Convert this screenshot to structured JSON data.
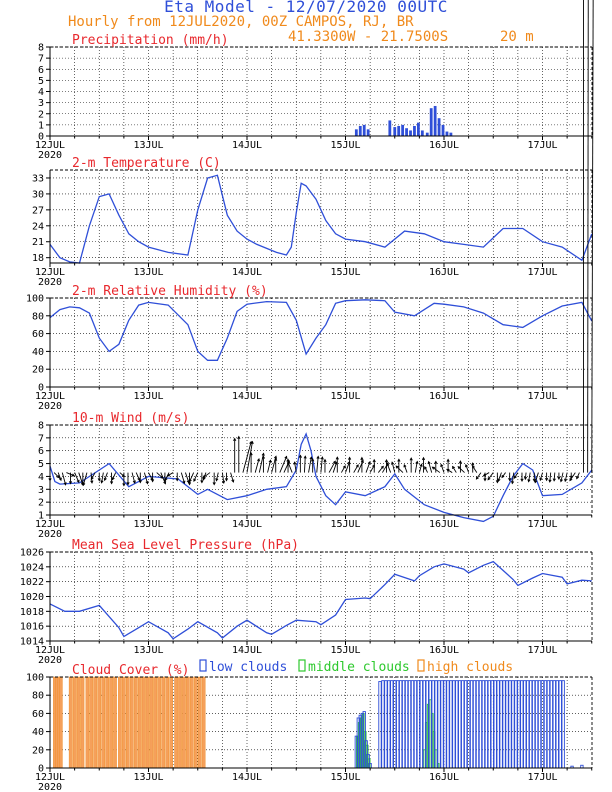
{
  "header": {
    "title": "Eta Model - 12/07/2020 00UTC",
    "subtitle": "Hourly from 12JUL2020, 00Z  CAMPOS, RJ, BR",
    "coords": "41.3300W - 21.7500S",
    "elevation": "20  m"
  },
  "colors": {
    "series": "#2f4fd8",
    "title": "#e8282d",
    "high": "#f5a05b",
    "highEdge": "#f08a1c",
    "middle": "#2ec92e",
    "low": "#2f4fd8",
    "axis": "#000000"
  },
  "x_axis": {
    "ticks": [
      "12JUL",
      "13JUL",
      "14JUL",
      "15JUL",
      "16JUL",
      "17JUL"
    ],
    "year": "2020",
    "range_days": [
      0,
      5.5
    ]
  },
  "chart_data": [
    {
      "id": "precip",
      "type": "bar",
      "title": "Precipitation (mm/h)",
      "ylim": [
        0,
        8
      ],
      "yticks": [
        0,
        1,
        2,
        3,
        4,
        5,
        6,
        7,
        8
      ],
      "show_year": true,
      "x": [
        3.11,
        3.15,
        3.19,
        3.23,
        3.45,
        3.5,
        3.54,
        3.58,
        3.62,
        3.66,
        3.7,
        3.74,
        3.78,
        3.83,
        3.87,
        3.91,
        3.95,
        3.99,
        4.03,
        4.07
      ],
      "values": [
        0.6,
        0.9,
        1.0,
        0.6,
        1.4,
        0.8,
        0.9,
        1.0,
        0.7,
        0.5,
        0.9,
        1.2,
        0.5,
        0.3,
        2.5,
        2.7,
        1.6,
        1.0,
        0.4,
        0.3
      ]
    },
    {
      "id": "temp",
      "type": "line",
      "title": "2-m Temperature (C)",
      "ylim": [
        17,
        34.5
      ],
      "yticks": [
        18,
        21,
        24,
        27,
        30,
        33
      ],
      "show_year": true,
      "x": [
        0.0,
        0.1,
        0.2,
        0.3,
        0.4,
        0.5,
        0.6,
        0.7,
        0.8,
        0.9,
        1.0,
        1.2,
        1.4,
        1.5,
        1.6,
        1.7,
        1.8,
        1.9,
        2.0,
        2.1,
        2.3,
        2.4,
        2.45,
        2.5,
        2.55,
        2.6,
        2.7,
        2.8,
        2.9,
        3.0,
        3.2,
        3.4,
        3.6,
        3.8,
        4.0,
        4.2,
        4.4,
        4.6,
        4.8,
        5.0,
        5.2,
        5.4,
        5.5
      ],
      "values": [
        20.5,
        18.0,
        17.2,
        17.0,
        24.0,
        29.5,
        30.0,
        26.0,
        22.5,
        21.0,
        20.0,
        19.0,
        18.5,
        27.0,
        33.0,
        33.5,
        26.0,
        23.0,
        21.5,
        20.5,
        19.0,
        18.5,
        20.0,
        26.5,
        32.0,
        31.5,
        29.0,
        25.0,
        22.5,
        21.5,
        21.0,
        20.0,
        23.0,
        22.5,
        21.0,
        20.5,
        20.0,
        23.5,
        23.5,
        21.0,
        20.0,
        17.5,
        22.5
      ]
    },
    {
      "id": "rh",
      "type": "line",
      "title": "2-m Relative Humidity (%)",
      "ylim": [
        0,
        100
      ],
      "yticks": [
        0,
        20,
        40,
        60,
        80,
        100
      ],
      "show_year": true,
      "x": [
        0.0,
        0.1,
        0.2,
        0.3,
        0.4,
        0.5,
        0.6,
        0.7,
        0.8,
        0.9,
        1.0,
        1.2,
        1.4,
        1.5,
        1.6,
        1.7,
        1.8,
        1.9,
        2.0,
        2.2,
        2.4,
        2.5,
        2.6,
        2.7,
        2.8,
        2.9,
        3.0,
        3.2,
        3.4,
        3.5,
        3.7,
        3.9,
        4.0,
        4.2,
        4.4,
        4.6,
        4.8,
        5.0,
        5.2,
        5.4,
        5.5
      ],
      "values": [
        78.0,
        87.0,
        90.0,
        89.0,
        83.0,
        55.0,
        40.0,
        48.0,
        75.0,
        92.0,
        95.0,
        92.0,
        70.0,
        40.0,
        30.0,
        30.0,
        55.0,
        85.0,
        93.0,
        96.0,
        95.0,
        75.0,
        37.0,
        55.0,
        70.0,
        94.0,
        97.0,
        98.0,
        97.0,
        84.0,
        80.0,
        94.0,
        93.0,
        90.0,
        83.0,
        70.0,
        67.0,
        80.0,
        91.0,
        95.0,
        74.0
      ]
    },
    {
      "id": "wind",
      "type": "line",
      "title": "10-m Wind (m/s)",
      "ylim": [
        1,
        8
      ],
      "yticks": [
        1,
        2,
        3,
        4,
        5,
        6,
        7,
        8
      ],
      "show_year": true,
      "arrow_baseline": 4.3,
      "x": [
        0.0,
        0.05,
        0.1,
        0.3,
        0.5,
        0.6,
        0.8,
        1.0,
        1.3,
        1.5,
        1.6,
        1.8,
        2.0,
        2.2,
        2.4,
        2.5,
        2.55,
        2.6,
        2.65,
        2.7,
        2.8,
        2.9,
        3.0,
        3.2,
        3.4,
        3.5,
        3.6,
        3.8,
        4.0,
        4.2,
        4.4,
        4.5,
        4.6,
        4.7,
        4.8,
        4.9,
        5.0,
        5.2,
        5.4,
        5.5
      ],
      "values": [
        4.8,
        3.6,
        3.4,
        3.5,
        4.5,
        5.0,
        3.2,
        4.0,
        3.8,
        2.6,
        3.0,
        2.2,
        2.5,
        3.0,
        3.2,
        4.5,
        6.5,
        7.3,
        6.0,
        4.0,
        2.5,
        1.8,
        2.8,
        2.5,
        3.2,
        4.2,
        3.0,
        1.8,
        1.2,
        0.8,
        0.5,
        0.9,
        2.5,
        4.0,
        5.0,
        4.5,
        2.5,
        2.6,
        3.5,
        4.5
      ],
      "arrows_u": [
        -0.0,
        0.5,
        0.28,
        0.33,
        0.78,
        0.0,
        0.42,
        0.43,
        -0.0,
        -0.37,
        0.1,
        -0.38,
        -0.0,
        -0.18,
        -0.29,
        -0.0,
        -0.33,
        0.46,
        0.0,
        0.0,
        0.27,
        0.34,
        0.0,
        0.32,
        0.41,
        -0.0,
        0.62,
        0.46,
        -0.0,
        -0.38,
        -0.56,
        -0.0,
        0.31,
        0.34,
        -0.0,
        -0.41,
        -0.38,
        0.0,
        -0.26,
        -0.68,
        -0.0,
        -0.19,
        0.14,
        -0.0,
        0.28,
        0.0,
        0.0,
        0.83,
        0.55,
        0.0,
        0.38,
        0.43,
        0.0,
        0.31,
        0.44,
        0.0,
        0.68,
        0.54,
        -0.0,
        -0.42,
        -0.17,
        0.0,
        0.08,
        0.28,
        0.0,
        0.14,
        0.15,
        0.0,
        0.62,
        0.35,
        0.0,
        0.38,
        0.4,
        0.0,
        0.45,
        0.53,
        0.0,
        0.4,
        0.43,
        0.0,
        0.5,
        0.58,
        -0.0,
        -0.34,
        -0.26,
        -0.0,
        -0.68,
        -0.28,
        0.0,
        0.2,
        0.23,
        -0.0,
        -0.29,
        -0.31,
        -0.0,
        -0.75,
        -0.29,
        -0.0,
        -0.53,
        -0.37,
        -0.0,
        -0.63,
        -0.28,
        -0.0,
        -0.43,
        -0.45,
        -0.0,
        -0.56,
        -0.52,
        -0.0,
        -0.32,
        -0.36,
        -0.0,
        -0.15,
        -0.35,
        -0.0,
        -0.08,
        -0.16,
        -0.0,
        -0.32,
        -0.22,
        -0.0,
        -0.09,
        -0.07,
        -0.0,
        -0.21,
        -0.19,
        -0.0,
        -0.54,
        -0.27,
        0.0,
        0.06,
        0.14
      ],
      "arrows_v": [
        -0.8,
        -0.5,
        -0.76,
        -1.22,
        -0.32,
        -1.1,
        -0.97,
        -1.25,
        -1.2,
        -1.27,
        -1.03,
        -0.66,
        -0.8,
        -1.02,
        -0.76,
        -1.1,
        -0.71,
        -0.39,
        -1.3,
        -1.2,
        -1.04,
        -0.75,
        -1.0,
        -1.1,
        -0.77,
        -0.9,
        -0.56,
        -1.11,
        -0.9,
        -0.75,
        -0.33,
        -0.8,
        -1.06,
        -1.0,
        -1.2,
        -0.91,
        -0.85,
        -1.0,
        -0.71,
        -0.5,
        -1.2,
        -0.81,
        -1.05,
        -0.8,
        -0.94,
        3.4,
        3.6,
        3.09,
        3.1,
        1.97,
        1.37,
        1.92,
        1.63,
        1.23,
        1.63,
        1.42,
        1.61,
        1.16,
        1.33,
        1.07,
        1.05,
        1.72,
        1.64,
        1.55,
        1.35,
        1.62,
        1.55,
        1.3,
        1.14,
        1.04,
        1.54,
        0.67,
        1.08,
        1.52,
        0.77,
        1.21,
        1.5,
        1.08,
        0.75,
        1.28,
        0.63,
        0.99,
        1.27,
        0.89,
        1.04,
        1.33,
        0.65,
        0.77,
        1.45,
        1.11,
        0.83,
        1.49,
        0.57,
        1.1,
        1.12,
        0.54,
        0.81,
        1.32,
        0.32,
        0.61,
        1.15,
        0.59,
        0.78,
        0.95,
        0.66,
        -0.64,
        -0.8,
        -0.33,
        -0.71,
        -1.0,
        -0.85,
        -0.49,
        -0.78,
        -1.09,
        -0.55,
        -0.84,
        -0.66,
        -0.91,
        -0.85,
        -1.0,
        -0.76,
        -0.77,
        -0.94,
        -0.82,
        -0.64,
        -0.9,
        -0.86,
        -0.55,
        -0.8,
        -0.6
      ]
    },
    {
      "id": "mslp",
      "type": "line",
      "title": "Mean Sea Level Pressure (hPa)",
      "ylim": [
        1014,
        1026
      ],
      "yticks": [
        1014,
        1016,
        1018,
        1020,
        1022,
        1024,
        1026
      ],
      "show_year": true,
      "x": [
        0.0,
        0.15,
        0.3,
        0.5,
        0.7,
        0.75,
        0.9,
        1.0,
        1.2,
        1.25,
        1.4,
        1.5,
        1.7,
        1.75,
        1.9,
        2.0,
        2.2,
        2.25,
        2.4,
        2.5,
        2.7,
        2.75,
        2.9,
        3.0,
        3.2,
        3.25,
        3.4,
        3.5,
        3.7,
        3.75,
        3.9,
        4.0,
        4.2,
        4.25,
        4.4,
        4.5,
        4.7,
        4.75,
        4.9,
        5.0,
        5.2,
        5.25,
        5.4,
        5.5
      ],
      "values": [
        1019.0,
        1018.0,
        1018.0,
        1018.8,
        1015.8,
        1014.6,
        1015.8,
        1016.6,
        1015.1,
        1014.3,
        1015.6,
        1016.6,
        1015.1,
        1014.4,
        1016.0,
        1016.8,
        1015.1,
        1014.9,
        1016.1,
        1016.8,
        1016.6,
        1016.2,
        1017.5,
        1019.6,
        1019.8,
        1019.7,
        1021.6,
        1023.0,
        1022.1,
        1022.8,
        1024.0,
        1024.4,
        1023.7,
        1023.2,
        1024.2,
        1024.7,
        1022.3,
        1021.5,
        1022.5,
        1023.1,
        1022.6,
        1021.7,
        1022.2,
        1022.1
      ]
    },
    {
      "id": "cloud",
      "type": "bar",
      "title": "Cloud Cover (%)",
      "ylim": [
        0,
        100
      ],
      "yticks": [
        0,
        20,
        40,
        60,
        80,
        100
      ],
      "show_year": true,
      "legend": [
        "low clouds",
        "middle clouds",
        "high clouds"
      ],
      "series": [
        {
          "name": "high clouds",
          "x": [
            0.05,
            0.07,
            0.09,
            0.11,
            0.21,
            0.25,
            0.29,
            0.33,
            0.38,
            0.42,
            0.46,
            0.5,
            0.54,
            0.58,
            0.62,
            0.66,
            0.71,
            0.75,
            0.79,
            0.83,
            0.87,
            0.91,
            0.95,
            0.99,
            1.03,
            1.07,
            1.11,
            1.15,
            1.19,
            1.23,
            1.28,
            1.32,
            1.36,
            1.4,
            1.44,
            1.48,
            1.52,
            1.56,
            1.6,
            1.64,
            1.68,
            1.72,
            1.76,
            1.8,
            1.84,
            1.88,
            1.92,
            1.96,
            2.0,
            2.04,
            2.08,
            2.12,
            2.16,
            2.2,
            2.24,
            2.28,
            2.32,
            2.36,
            2.4,
            2.44,
            2.48,
            2.52,
            2.56,
            2.6,
            2.64,
            2.68,
            2.72,
            2.76,
            2.8,
            2.84,
            2.88,
            2.92,
            2.96,
            3.0,
            3.04,
            3.08,
            3.12,
            3.16,
            3.2,
            3.24,
            3.28,
            3.32,
            3.36,
            3.4,
            3.44,
            3.48,
            3.52,
            3.56,
            3.6,
            3.64,
            3.68,
            3.72,
            3.76,
            3.8,
            3.84,
            3.88,
            3.92,
            3.96,
            4.0,
            4.04,
            4.08,
            4.12,
            4.16,
            4.2,
            4.24,
            4.28,
            4.32,
            4.36,
            4.4,
            4.44,
            4.48,
            4.52,
            4.56,
            4.6,
            4.64,
            4.68,
            4.72,
            4.76,
            4.8,
            4.84,
            4.88,
            4.92,
            4.96,
            5.0,
            5.04,
            5.08,
            5.12,
            5.16,
            5.2,
            5.24,
            5.28,
            5.32,
            5.36,
            5.4,
            5.44,
            5.48
          ],
          "values": [
            100,
            100,
            100,
            100,
            100,
            100,
            100,
            100,
            100,
            100,
            100,
            100,
            100,
            100,
            100,
            100,
            100,
            100,
            100,
            100,
            100,
            100,
            100,
            100,
            100,
            100,
            100,
            100,
            100,
            100,
            100,
            100,
            100,
            100,
            100,
            100,
            100,
            100,
            0,
            0,
            0,
            0,
            0,
            0,
            0,
            0,
            0,
            0,
            0,
            0,
            0,
            0,
            0,
            0,
            0,
            0,
            0,
            0,
            0,
            0,
            0,
            0,
            0,
            0,
            0,
            0,
            0,
            0,
            0,
            0,
            0,
            0,
            0,
            0,
            0,
            0,
            0,
            0,
            0,
            0,
            0,
            0,
            0,
            0,
            0,
            0,
            0,
            0,
            0,
            0,
            0,
            0,
            0,
            0,
            0,
            0,
            0,
            0,
            0,
            0,
            0,
            0,
            0,
            0,
            0,
            0,
            0,
            0,
            0,
            0,
            0,
            0,
            0,
            0,
            0,
            0,
            0,
            0,
            0,
            0,
            0,
            0,
            0,
            0,
            0,
            0,
            0,
            0,
            0,
            0,
            0,
            0,
            0,
            0,
            0,
            0
          ]
        },
        {
          "name": "middle clouds",
          "x": [
            3.12,
            3.14,
            3.16,
            3.18,
            3.2,
            3.22,
            3.24,
            3.26,
            3.8,
            3.82,
            3.84,
            3.86,
            3.88,
            3.9,
            3.92,
            3.94
          ],
          "values": [
            35,
            50,
            55,
            60,
            40,
            25,
            10,
            0,
            20,
            50,
            70,
            75,
            60,
            40,
            20,
            5
          ]
        },
        {
          "name": "low clouds",
          "x": [
            3.11,
            3.13,
            3.15,
            3.17,
            3.19,
            3.21,
            3.23,
            3.25,
            3.35,
            3.38,
            3.41,
            3.44,
            3.47,
            3.5,
            3.53,
            3.56,
            3.59,
            3.62,
            3.65,
            3.68,
            3.71,
            3.74,
            3.77,
            3.8,
            3.83,
            3.86,
            3.89,
            3.92,
            3.95,
            3.98,
            4.01,
            4.04,
            4.07,
            4.1,
            4.13,
            4.16,
            4.19,
            4.22,
            4.25,
            4.28,
            4.31,
            4.34,
            4.37,
            4.4,
            4.43,
            4.46,
            4.49,
            4.52,
            4.55,
            4.58,
            4.61,
            4.64,
            4.67,
            4.7,
            4.73,
            4.76,
            4.79,
            4.82,
            4.85,
            4.88,
            4.91,
            4.94,
            4.97,
            5.0,
            5.03,
            5.06,
            5.09,
            5.12,
            5.15,
            5.18,
            5.21,
            5.3,
            5.4
          ],
          "values": [
            35,
            55,
            58,
            60,
            62,
            30,
            15,
            5,
            95,
            96,
            96,
            96,
            96,
            96,
            96,
            96,
            96,
            96,
            96,
            96,
            96,
            96,
            96,
            96,
            96,
            96,
            96,
            96,
            96,
            96,
            96,
            96,
            96,
            96,
            96,
            96,
            96,
            96,
            96,
            96,
            96,
            96,
            96,
            96,
            96,
            96,
            96,
            96,
            96,
            96,
            96,
            96,
            96,
            96,
            96,
            96,
            96,
            96,
            96,
            96,
            96,
            96,
            96,
            96,
            96,
            96,
            96,
            96,
            96,
            96,
            96,
            2,
            3
          ]
        }
      ]
    }
  ]
}
